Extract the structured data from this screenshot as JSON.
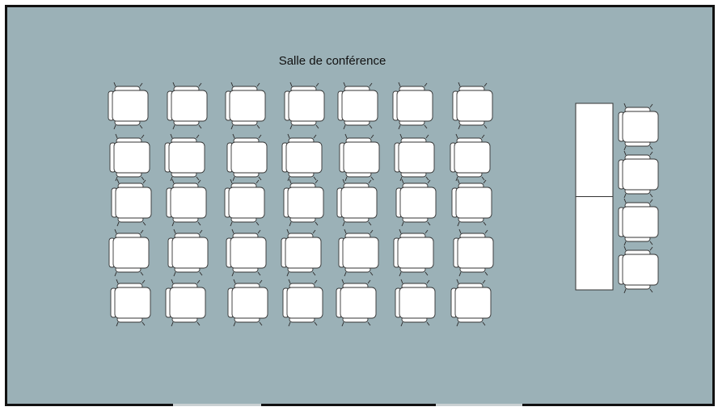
{
  "room": {
    "title": "Salle de conférence",
    "floor_color": "#9bb1b7",
    "wall_color": "#111111"
  },
  "audience": {
    "rows": 5,
    "seats_per_row": 7,
    "facing": "right"
  },
  "head_table": {
    "sections": 2,
    "seats": 4,
    "facing": "right"
  },
  "doors": {
    "count": 2,
    "wall": "bottom"
  },
  "icons": {
    "seat": "armchair-icon",
    "table": "table-icon",
    "door": "door-opening-icon"
  }
}
